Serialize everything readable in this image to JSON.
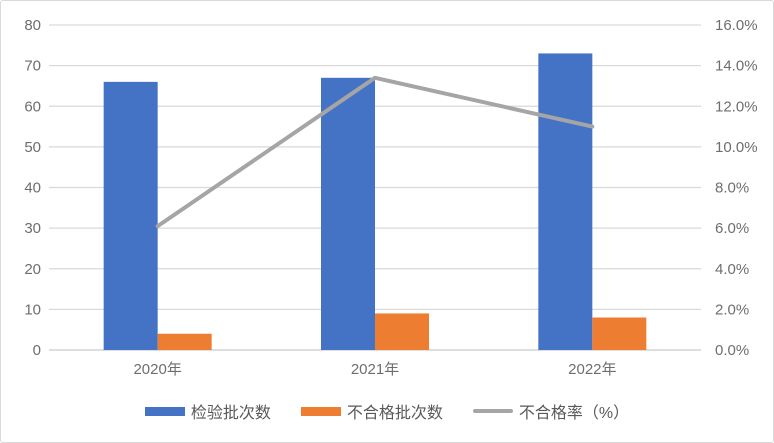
{
  "chart_data": {
    "type": "bar",
    "subtype": "combo-bar-line",
    "title": "",
    "categories": [
      "2020年",
      "2021年",
      "2022年"
    ],
    "series": [
      {
        "name": "检验批次数",
        "type": "bar",
        "axis": "left",
        "color": "#4472c4",
        "values": [
          66,
          67,
          73
        ]
      },
      {
        "name": "不合格批次数",
        "type": "bar",
        "axis": "left",
        "color": "#ed7d31",
        "values": [
          4,
          9,
          8
        ]
      },
      {
        "name": "不合格率（%）",
        "type": "line",
        "axis": "right",
        "color": "#a5a5a5",
        "values": [
          6.1,
          13.4,
          11.0
        ]
      }
    ],
    "left_axis": {
      "min": 0,
      "max": 80,
      "step": 10,
      "ticks": [
        "0",
        "10",
        "20",
        "30",
        "40",
        "50",
        "60",
        "70",
        "80"
      ]
    },
    "right_axis": {
      "min": 0,
      "max": 16,
      "step": 2,
      "ticks": [
        "0.0%",
        "2.0%",
        "4.0%",
        "6.0%",
        "8.0%",
        "10.0%",
        "12.0%",
        "14.0%",
        "16.0%"
      ]
    },
    "grid": true,
    "gridline_color": "#d9d9d9",
    "axis_text_color": "#6e6e6e",
    "legend_position": "bottom"
  }
}
